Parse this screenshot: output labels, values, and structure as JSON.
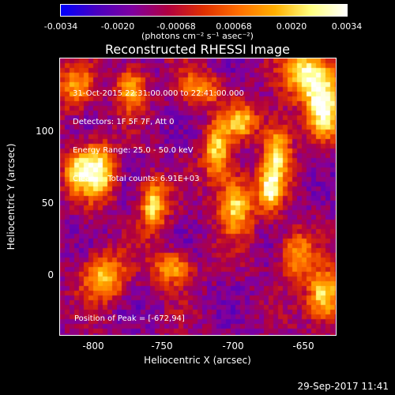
{
  "colorbar": {
    "ticks": [
      "-0.0034",
      "-0.0020",
      "-0.00068",
      "0.00068",
      "0.0020",
      "0.0034"
    ],
    "unit_label": "(photons cm⁻² s⁻¹ asec⁻²)",
    "colors": [
      "#0000ff",
      "#4a00c0",
      "#8000a0",
      "#b00040",
      "#e03000",
      "#ff7000",
      "#ffb000",
      "#ffff80",
      "#ffffff"
    ]
  },
  "title": "Reconstructed RHESSI Image",
  "info": {
    "line1": "31-Oct-2015 22:31:00.000 to 22:41:00.000",
    "line2": "Detectors: 1F 5F 7F, Att 0",
    "line3": "Energy Range: 25.0 - 50.0 keV",
    "line4": "Clean     Total counts: 6.91E+03"
  },
  "peak_label": "Position of Peak = [-672,94]",
  "x_axis": {
    "label": "Heliocentric X (arcsec)",
    "ticks": [
      "-800",
      "-750",
      "-700",
      "-650"
    ],
    "range": [
      -822,
      -630
    ]
  },
  "y_axis": {
    "label": "Heliocentric Y (arcsec)",
    "ticks": [
      "100",
      "50",
      "0"
    ],
    "range": [
      -42,
      150
    ]
  },
  "timestamp": "29-Sep-2017 11:41"
}
